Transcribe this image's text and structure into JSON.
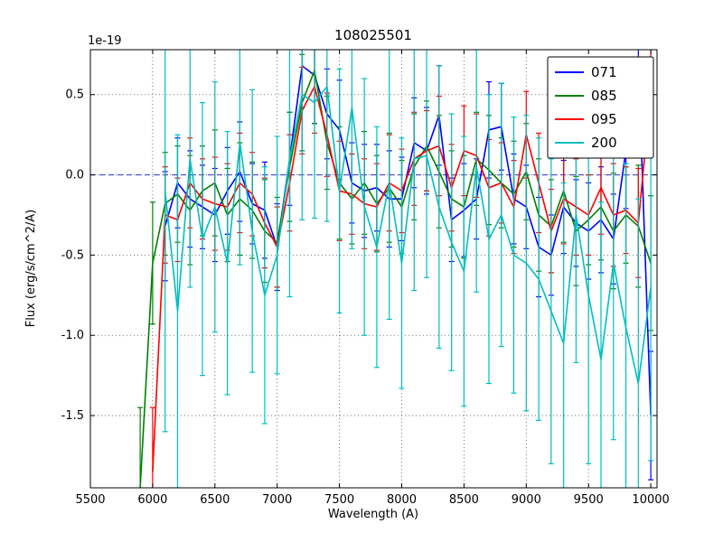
{
  "background": "#ffffff",
  "chart_data": {
    "type": "line",
    "title": "108025501",
    "xlabel": "Wavelength (A)",
    "ylabel": "Flux (erg/s/cm^2/A)",
    "offset_text": "1e-19",
    "grid": true,
    "legend_position": "upper right",
    "xlim": [
      5500,
      10050
    ],
    "ylim": [
      -1.95,
      0.78
    ],
    "xticks": [
      5500,
      6000,
      6500,
      7000,
      7500,
      8000,
      8500,
      9000,
      9500,
      10000
    ],
    "yticks": [
      0.5,
      0.0,
      -0.5,
      -1.0,
      -1.5
    ],
    "ytick_labels": [
      "0.5",
      "0.0",
      "-0.5",
      "-1.0",
      "-1.5"
    ],
    "zero_line": {
      "y": 0.0,
      "color": "#3333cc",
      "style": "dashed"
    },
    "x": [
      5900,
      6000,
      6100,
      6200,
      6300,
      6400,
      6500,
      6600,
      6700,
      6800,
      6900,
      7000,
      7100,
      7200,
      7300,
      7400,
      7500,
      7600,
      7700,
      7800,
      7900,
      8000,
      8100,
      8200,
      8300,
      8400,
      8500,
      8600,
      8700,
      8800,
      8900,
      9000,
      9100,
      9200,
      9300,
      9400,
      9500,
      9600,
      9700,
      9800,
      9900,
      10000
    ],
    "series": [
      {
        "name": "071",
        "color": "#0000ff",
        "values": [
          null,
          null,
          -0.32,
          -0.05,
          -0.15,
          -0.2,
          -0.25,
          -0.1,
          0.02,
          -0.18,
          -0.22,
          -0.45,
          0.1,
          0.68,
          0.62,
          0.38,
          0.28,
          -0.05,
          -0.1,
          -0.08,
          -0.15,
          -0.15,
          0.2,
          0.15,
          0.37,
          -0.28,
          -0.22,
          -0.15,
          0.28,
          0.3,
          -0.15,
          -0.2,
          -0.45,
          -0.5,
          -0.2,
          -0.3,
          -0.35,
          -0.28,
          -0.4,
          0.15,
          0.72,
          -1.5
        ],
        "errors": [
          null,
          null,
          0.34,
          0.28,
          0.3,
          0.26,
          0.29,
          0.27,
          0.31,
          0.25,
          0.3,
          0.27,
          0.29,
          0.26,
          0.3,
          0.28,
          0.31,
          0.25,
          0.29,
          0.27,
          0.3,
          0.26,
          0.28,
          0.27,
          0.31,
          0.26,
          0.29,
          0.25,
          0.3,
          0.27,
          0.28,
          0.26,
          0.31,
          0.25,
          0.29,
          0.27,
          0.3,
          0.33,
          0.28,
          0.36,
          0.3,
          0.4
        ]
      },
      {
        "name": "085",
        "color": "#007f00",
        "values": [
          -1.95,
          -0.55,
          -0.18,
          -0.12,
          -0.22,
          -0.1,
          -0.05,
          -0.25,
          -0.15,
          -0.22,
          -0.35,
          -0.42,
          0.05,
          0.45,
          0.65,
          0.2,
          -0.05,
          -0.15,
          -0.05,
          -0.18,
          -0.08,
          -0.2,
          0.05,
          0.18,
          0.02,
          -0.15,
          -0.2,
          0.1,
          0.03,
          -0.05,
          -0.12,
          0.02,
          -0.25,
          -0.32,
          -0.1,
          -0.35,
          -0.28,
          -0.2,
          -0.35,
          -0.25,
          -0.32,
          -0.55
        ],
        "errors": [
          0.5,
          0.38,
          0.32,
          0.3,
          0.34,
          0.28,
          0.33,
          0.29,
          0.35,
          0.3,
          0.32,
          0.28,
          0.34,
          0.3,
          0.33,
          0.29,
          0.35,
          0.28,
          0.32,
          0.3,
          0.34,
          0.29,
          0.33,
          0.28,
          0.35,
          0.3,
          0.32,
          0.29,
          0.34,
          0.28,
          0.33,
          0.3,
          0.35,
          0.29,
          0.32,
          0.34,
          0.28,
          0.33,
          0.36,
          0.3,
          0.38,
          0.42
        ]
      },
      {
        "name": "095",
        "color": "#ff0000",
        "values": [
          null,
          -1.85,
          -0.25,
          -0.28,
          -0.05,
          -0.15,
          -0.18,
          -0.2,
          -0.05,
          -0.12,
          -0.3,
          -0.45,
          -0.05,
          0.4,
          0.55,
          0.25,
          -0.1,
          -0.12,
          -0.18,
          -0.2,
          -0.05,
          -0.1,
          0.1,
          0.15,
          0.18,
          -0.08,
          0.15,
          0.12,
          -0.08,
          -0.05,
          -0.2,
          0.25,
          -0.05,
          -0.35,
          -0.15,
          -0.2,
          -0.25,
          -0.08,
          -0.25,
          -0.22,
          -0.3,
          0.52
        ],
        "errors": [
          null,
          0.4,
          0.3,
          0.26,
          0.28,
          0.25,
          0.29,
          0.27,
          0.31,
          0.26,
          0.28,
          0.25,
          0.3,
          0.27,
          0.29,
          0.26,
          0.31,
          0.25,
          0.28,
          0.27,
          0.3,
          0.26,
          0.29,
          0.25,
          0.31,
          0.27,
          0.28,
          0.26,
          0.3,
          0.25,
          0.29,
          0.27,
          0.31,
          0.26,
          0.28,
          0.3,
          0.25,
          0.29,
          0.32,
          0.27,
          0.34,
          0.38
        ]
      },
      {
        "name": "200",
        "color": "#00bfbf",
        "values": [
          null,
          null,
          -0.1,
          -0.85,
          0.1,
          -0.4,
          -0.2,
          -0.55,
          0.2,
          -0.35,
          -0.75,
          -0.5,
          0.1,
          0.5,
          0.45,
          0.55,
          -0.1,
          0.42,
          -0.2,
          -0.45,
          -0.05,
          -0.55,
          0.1,
          0.12,
          -0.2,
          -0.42,
          -0.6,
          0.05,
          -0.4,
          -0.25,
          -0.5,
          -0.55,
          -0.65,
          -0.85,
          -1.05,
          -0.25,
          -0.75,
          -1.15,
          -0.55,
          -0.95,
          -1.3,
          -0.7
        ],
        "errors": [
          null,
          null,
          1.5,
          1.1,
          0.8,
          0.85,
          0.78,
          0.82,
          0.76,
          0.88,
          0.8,
          0.74,
          0.86,
          0.78,
          0.72,
          0.84,
          0.76,
          0.88,
          0.8,
          0.75,
          0.85,
          0.78,
          0.82,
          0.76,
          0.88,
          0.8,
          0.84,
          0.78,
          0.9,
          0.82,
          0.86,
          0.92,
          0.88,
          0.95,
          1.0,
          0.92,
          1.05,
          0.98,
          1.1,
          1.02,
          1.15,
          1.08
        ]
      }
    ],
    "legend": [
      {
        "label": "071",
        "color": "#0000ff"
      },
      {
        "label": "085",
        "color": "#007f00"
      },
      {
        "label": "095",
        "color": "#ff0000"
      },
      {
        "label": "200",
        "color": "#00bfbf"
      }
    ]
  }
}
